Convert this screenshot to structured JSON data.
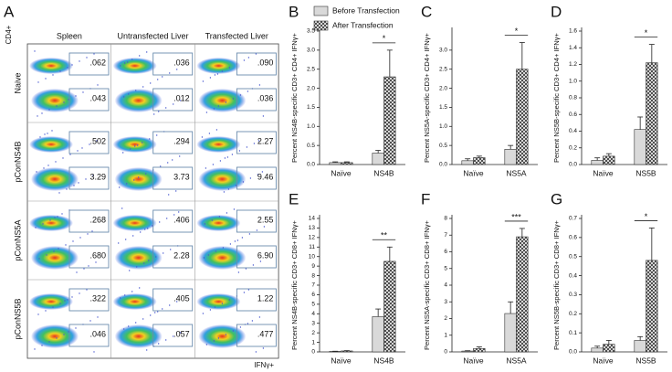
{
  "panel_a": {
    "label": "A",
    "y_axis": "CD4+",
    "x_axis": "IFNγ+",
    "columns": [
      "Spleen",
      "Untransfected Liver",
      "Transfected Liver"
    ],
    "rows": [
      {
        "label": "Naive",
        "gates": [
          [
            ".062",
            ".043"
          ],
          [
            ".036",
            ".012"
          ],
          [
            ".090",
            ".036"
          ]
        ]
      },
      {
        "label": "pConNS4B",
        "gates": [
          [
            ".502",
            "3.29"
          ],
          [
            ".294",
            "3.73"
          ],
          [
            "2.27",
            "9.46"
          ]
        ]
      },
      {
        "label": "pConNS5A",
        "gates": [
          [
            ".268",
            ".680"
          ],
          [
            ".406",
            "2.28"
          ],
          [
            "2.55",
            "6.90"
          ]
        ]
      },
      {
        "label": "pConNS5B",
        "gates": [
          [
            ".322",
            ".046"
          ],
          [
            ".405",
            ".057"
          ],
          [
            "1.22",
            ".477"
          ]
        ]
      }
    ]
  },
  "chart_data": [
    {
      "type": "bar",
      "label": "B",
      "y_label": "Percent NS4B-specific CD3+ CD4+ IFNγ+",
      "categories": [
        "Naïve",
        "NS4B"
      ],
      "series": [
        {
          "name": "Before Transfection",
          "color": "#d9d9d9",
          "values": [
            0.05,
            0.3
          ],
          "errors": [
            0.02,
            0.07
          ]
        },
        {
          "name": "After Transfection",
          "color": "#333333",
          "values": [
            0.05,
            2.3
          ],
          "errors": [
            0.02,
            0.7
          ]
        }
      ],
      "ylim": [
        0,
        3.5
      ],
      "yticks": [
        {
          "value": 0,
          "label": "0.0"
        },
        {
          "value": 0.5,
          "label": "0.5"
        },
        {
          "value": 1,
          "label": "1.0"
        },
        {
          "value": 1.5,
          "label": "1.5"
        },
        {
          "value": 2,
          "label": "2.0"
        },
        {
          "value": 2.5,
          "label": "2.5"
        },
        {
          "value": 3,
          "label": "3.0"
        },
        {
          "value": 3.5,
          "label": "3.5"
        }
      ],
      "annotation": "*"
    },
    {
      "type": "bar",
      "label": "C",
      "y_label": "Percent NS5A-specific CD3+ CD4+ IFNγ+",
      "categories": [
        "Naïve",
        "NS5A"
      ],
      "series": [
        {
          "color": "#d9d9d9",
          "values": [
            0.1,
            0.4
          ],
          "errors": [
            0.05,
            0.1
          ]
        },
        {
          "color": "#333333",
          "values": [
            0.18,
            2.5
          ],
          "errors": [
            0.04,
            0.7
          ]
        }
      ],
      "ylim": [
        0,
        3.5
      ],
      "yticks": [
        {
          "value": 0,
          "label": "0.0"
        },
        {
          "value": 0.5,
          "label": "0.5"
        },
        {
          "value": 1,
          "label": "1.0"
        },
        {
          "value": 1.5,
          "label": "1.5"
        },
        {
          "value": 2,
          "label": "2.0"
        },
        {
          "value": 2.5,
          "label": "2.5"
        },
        {
          "value": 3,
          "label": "3.0"
        }
      ],
      "annotation": "*"
    },
    {
      "type": "bar",
      "label": "D",
      "y_label": "Percent NS5B-specific CD3+ CD4+ IFNγ+",
      "categories": [
        "Naïve",
        "NS5B"
      ],
      "series": [
        {
          "color": "#d9d9d9",
          "values": [
            0.05,
            0.42
          ],
          "errors": [
            0.03,
            0.15
          ]
        },
        {
          "color": "#333333",
          "values": [
            0.1,
            1.22
          ],
          "errors": [
            0.03,
            0.22
          ]
        }
      ],
      "ylim": [
        0,
        1.6
      ],
      "yticks": [
        {
          "value": 0,
          "label": "0.0"
        },
        {
          "value": 0.2,
          "label": "0.2"
        },
        {
          "value": 0.4,
          "label": "0.4"
        },
        {
          "value": 0.6,
          "label": "0.6"
        },
        {
          "value": 0.8,
          "label": "0.8"
        },
        {
          "value": 1,
          "label": "1.0"
        },
        {
          "value": 1.2,
          "label": "1.2"
        },
        {
          "value": 1.4,
          "label": "1.4"
        },
        {
          "value": 1.6,
          "label": "1.6"
        }
      ],
      "annotation": "*"
    },
    {
      "type": "bar",
      "label": "E",
      "y_label": "Percent NS4B-specific CD3+ CD8+ IFNγ+",
      "categories": [
        "Naïve",
        "NS4B"
      ],
      "series": [
        {
          "color": "#d9d9d9",
          "values": [
            0.05,
            3.7
          ],
          "errors": [
            0.02,
            0.8
          ]
        },
        {
          "color": "#333333",
          "values": [
            0.1,
            9.5
          ],
          "errors": [
            0.03,
            1.5
          ]
        }
      ],
      "ylim": [
        0,
        14
      ],
      "yticks": [
        0,
        1,
        2,
        3,
        4,
        5,
        6,
        7,
        8,
        9,
        10,
        11,
        12,
        13,
        14
      ],
      "annotation": "**"
    },
    {
      "type": "bar",
      "label": "F",
      "y_label": "Percent NS5A-specific CD3+ CD8+ IFNγ+",
      "categories": [
        "Naïve",
        "NS5A"
      ],
      "series": [
        {
          "color": "#d9d9d9",
          "values": [
            0.05,
            2.3
          ],
          "errors": [
            0.02,
            0.7
          ]
        },
        {
          "color": "#333333",
          "values": [
            0.2,
            6.9
          ],
          "errors": [
            0.1,
            0.5
          ]
        }
      ],
      "ylim": [
        0,
        8
      ],
      "yticks": [
        0,
        1,
        2,
        3,
        4,
        5,
        6,
        7,
        8
      ],
      "annotation": "***"
    },
    {
      "type": "bar",
      "label": "G",
      "y_label": "Percent NS5B-specific CD3+ CD8+ IFNγ+",
      "categories": [
        "Naïve",
        "NS5B"
      ],
      "series": [
        {
          "color": "#d9d9d9",
          "values": [
            0.02,
            0.06
          ],
          "errors": [
            0.01,
            0.02
          ]
        },
        {
          "color": "#333333",
          "values": [
            0.04,
            0.48
          ],
          "errors": [
            0.02,
            0.17
          ]
        }
      ],
      "ylim": [
        0,
        0.7
      ],
      "yticks": [
        {
          "value": 0,
          "label": "0.0"
        },
        {
          "value": 0.1,
          "label": "0.1"
        },
        {
          "value": 0.2,
          "label": "0.2"
        },
        {
          "value": 0.3,
          "label": "0.3"
        },
        {
          "value": 0.4,
          "label": "0.4"
        },
        {
          "value": 0.5,
          "label": "0.5"
        },
        {
          "value": 0.6,
          "label": "0.6"
        },
        {
          "value": 0.7,
          "label": "0.7"
        }
      ],
      "annotation": "*"
    }
  ]
}
